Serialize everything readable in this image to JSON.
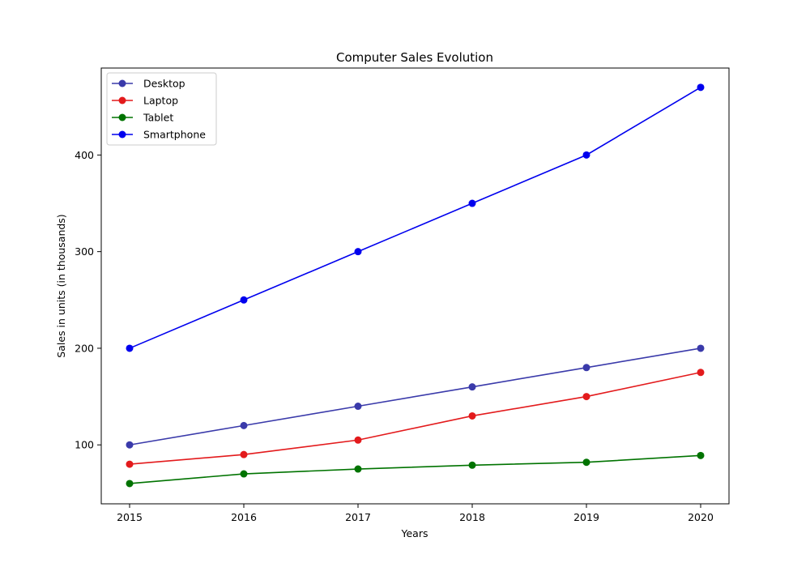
{
  "chart_data": {
    "type": "line",
    "title": "Computer Sales Evolution",
    "xlabel": "Years",
    "ylabel": "Sales in units (in thousands)",
    "categories": [
      "2015",
      "2016",
      "2017",
      "2018",
      "2019",
      "2020"
    ],
    "yticks": [
      100,
      200,
      300,
      400
    ],
    "ylim": [
      39,
      490
    ],
    "grid": false,
    "legend_position": "top-left",
    "series": [
      {
        "name": "Desktop",
        "color": "#3a3aaa",
        "values": [
          100,
          120,
          140,
          160,
          180,
          200
        ]
      },
      {
        "name": "Laptop",
        "color": "#e31a1c",
        "values": [
          80,
          90,
          105,
          130,
          150,
          175
        ]
      },
      {
        "name": "Tablet",
        "color": "#007300",
        "values": [
          60,
          70,
          75,
          79,
          82,
          89
        ]
      },
      {
        "name": "Smartphone",
        "color": "#0000ee",
        "values": [
          200,
          250,
          300,
          350,
          400,
          470
        ]
      }
    ]
  }
}
